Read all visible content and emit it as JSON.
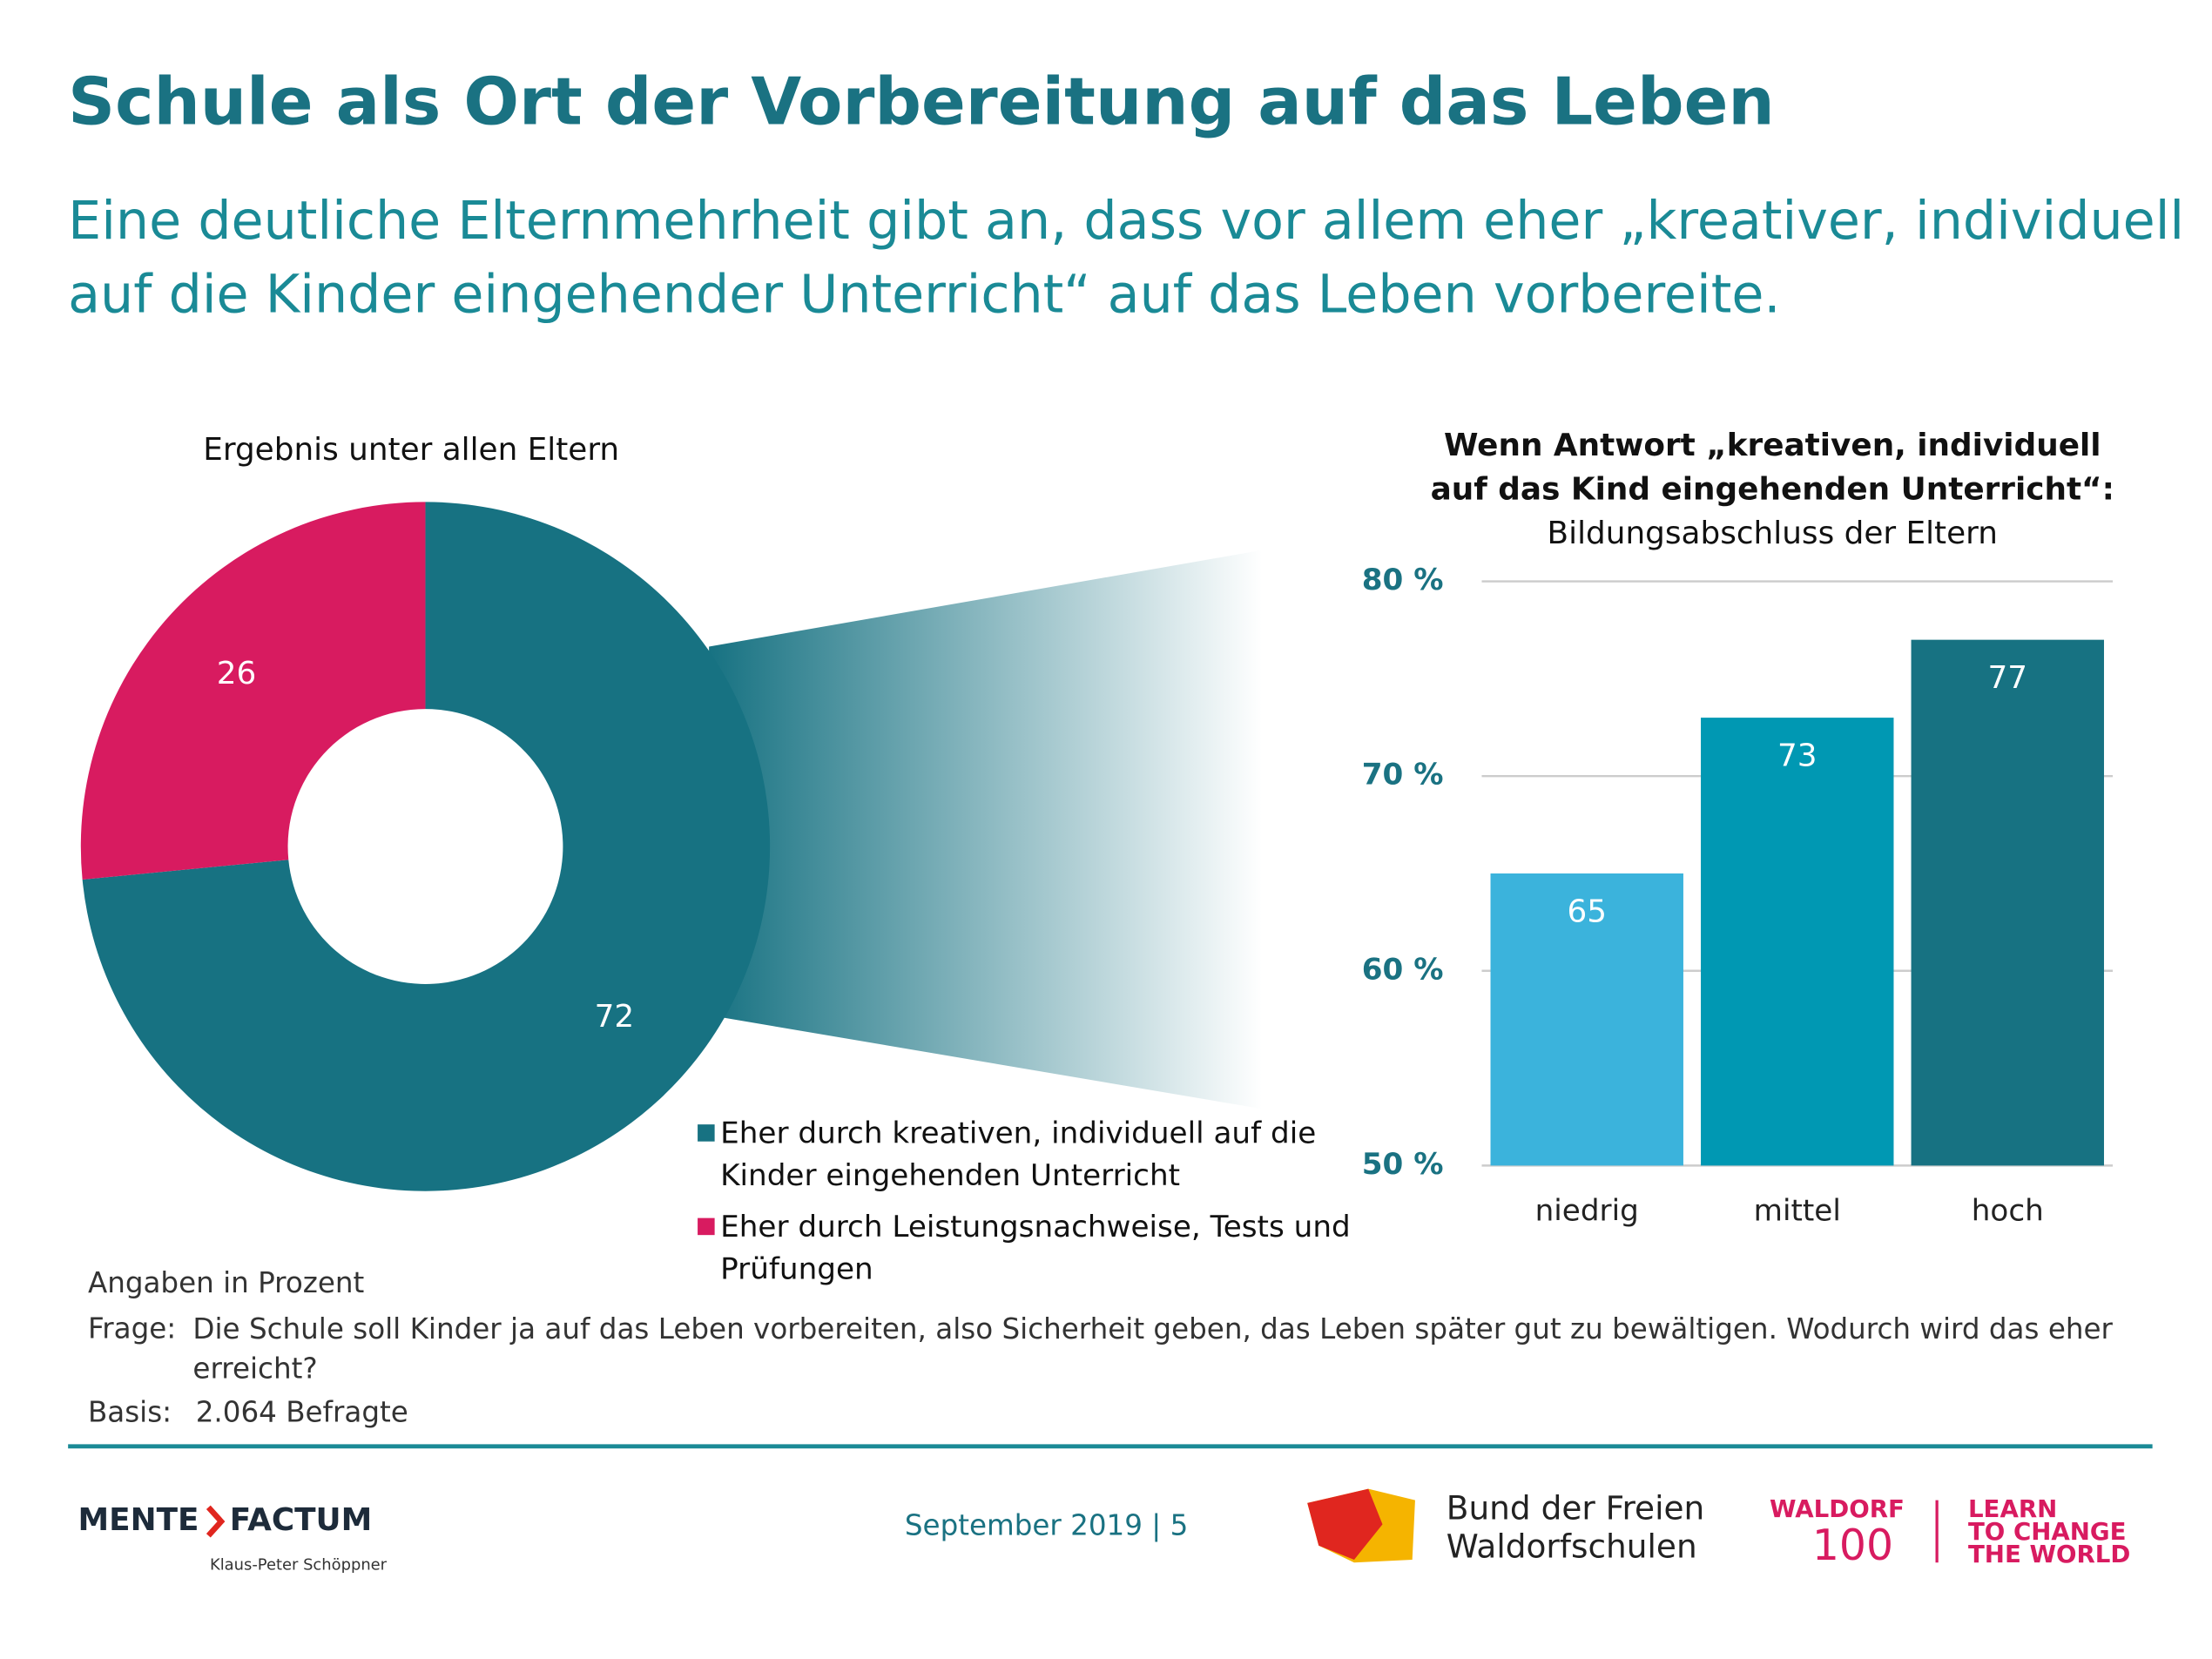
{
  "header": {
    "title": "Schule als Ort der Vorbereitung auf das Leben",
    "subtitle": [
      "Eine deutliche Elternmehrheit gibt an, dass vor allem eher „kreativer, individuell",
      "auf die Kinder eingehender Unterricht“ auf das Leben vorbereite."
    ]
  },
  "chart_data": [
    {
      "type": "pie",
      "title": "Ergebnis unter allen Eltern",
      "donut": true,
      "series": [
        {
          "name": "Eher durch kreativen, individuell auf die Kinder eingehenden Unterricht",
          "color": "#177282",
          "values": [
            72
          ]
        },
        {
          "name": "Eher durch Leistungsnachweise, Tests und Prüfungen",
          "color": "#d81b60",
          "values": [
            26
          ]
        }
      ]
    },
    {
      "type": "bar",
      "title": [
        "Wenn Antwort „kreativen, individuell",
        "auf das Kind eingehenden Unterricht“:"
      ],
      "subtitle": "Bildungsabschluss der Eltern",
      "categories": [
        "niedrig",
        "mittel",
        "hoch"
      ],
      "values": [
        65,
        73,
        77
      ],
      "colors": [
        "#3bb3dc",
        "#0098b3",
        "#177282"
      ],
      "ylim": [
        50,
        80
      ],
      "yticks": [
        {
          "value": 50,
          "label": "50 %"
        },
        {
          "value": 60,
          "label": "60 %"
        },
        {
          "value": 70,
          "label": "70 %"
        },
        {
          "value": 80,
          "label": "80 %"
        }
      ],
      "grid": true
    }
  ],
  "notes": {
    "unit": "Angaben in Prozent",
    "question_label": "Frage:",
    "question": "Die Schule soll Kinder ja auf das Leben vorbereiten, also Sicherheit geben, das Leben später gut zu bewältigen. Wodurch wird das eher erreicht?",
    "basis_label": "Basis:",
    "basis": "2.064 Befragte"
  },
  "footer": {
    "brand_left": "MENTE",
    "brand_right": "FACTUM",
    "author": "Klaus-Peter Schöppner",
    "date_page": "September 2019 | 5",
    "bund": [
      "Bund der Freien",
      "Waldorfschulen"
    ],
    "waldorf": "WALDORF",
    "hundred": "100",
    "slogan": [
      "LEARN",
      "TO CHANGE",
      "THE WORLD"
    ]
  }
}
